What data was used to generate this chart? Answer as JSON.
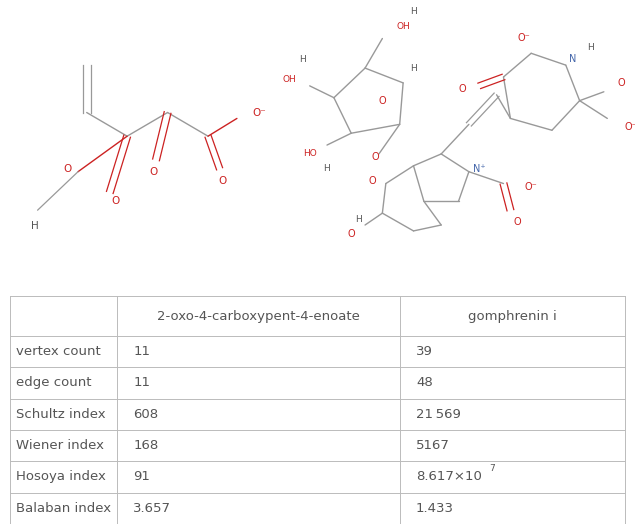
{
  "col1_header": "2-oxo-4-carboxypent-4-enoate",
  "col2_header": "gomphrenin i",
  "row_labels": [
    "vertex count",
    "edge count",
    "Schultz index",
    "Wiener index",
    "Hosoya index",
    "Balaban index"
  ],
  "col1_values": [
    "11",
    "11",
    "608",
    "168",
    "91",
    "3.657"
  ],
  "col2_values": [
    "39",
    "48",
    "21 569",
    "5167",
    "8.617×10⁷",
    "1.433"
  ],
  "fig_bg": "#ffffff",
  "border_color": "#cccccc",
  "text_color": "#555555",
  "red_color": "#cc2222",
  "blue_color": "#4466aa",
  "bond_color": "#999999",
  "header_fontsize": 9.5,
  "cell_fontsize": 9.5,
  "molecule1_title": "2-oxo-4-carboxypent-4-enoate",
  "molecule2_title": "gomphrenin i"
}
